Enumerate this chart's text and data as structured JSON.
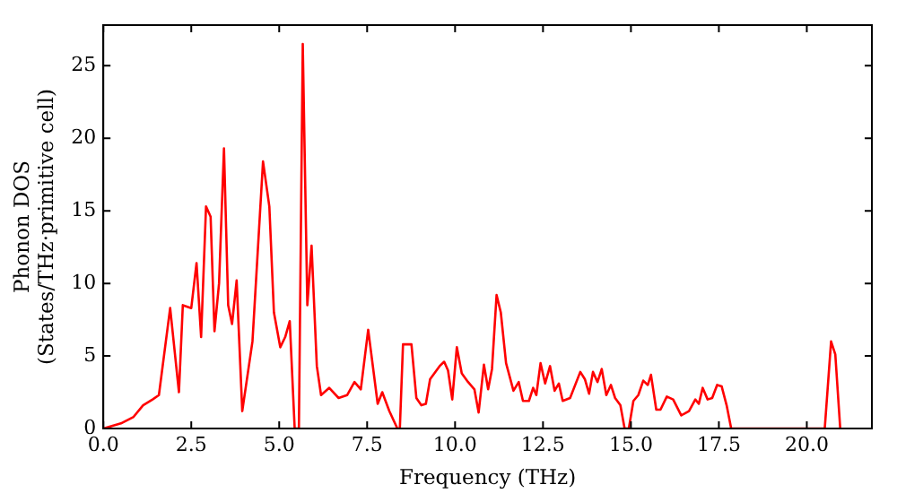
{
  "chart_data": {
    "type": "line",
    "xlabel": "Frequency (THz)",
    "ylabel": "Phonon DOS\n(States/THz·primitive cell)",
    "xlim": [
      0,
      21.85
    ],
    "ylim": [
      0,
      27.8
    ],
    "xticks": [
      {
        "value": 0,
        "label": "0.0"
      },
      {
        "value": 2.5,
        "label": "2.5"
      },
      {
        "value": 5,
        "label": "5.0"
      },
      {
        "value": 7.5,
        "label": "7.5"
      },
      {
        "value": 10,
        "label": "10.0"
      },
      {
        "value": 12.5,
        "label": "12.5"
      },
      {
        "value": 15,
        "label": "15.0"
      },
      {
        "value": 17.5,
        "label": "17.5"
      },
      {
        "value": 20,
        "label": "20.0"
      }
    ],
    "yticks": [
      0,
      5,
      10,
      15,
      20,
      25
    ],
    "grid": false,
    "legend": false,
    "marker": "none",
    "line_style": "solid",
    "series": [
      {
        "color": "#ff0000",
        "x": [
          0,
          0.5,
          0.86,
          1.13,
          1.4,
          1.58,
          1.9,
          2.15,
          2.26,
          2.5,
          2.65,
          2.78,
          2.92,
          3.05,
          3.16,
          3.29,
          3.43,
          3.55,
          3.66,
          3.79,
          3.95,
          4.24,
          4.54,
          4.72,
          4.85,
          5.03,
          5.17,
          5.3,
          5.44,
          5.56,
          5.67,
          5.8,
          5.92,
          6.07,
          6.19,
          6.42,
          6.69,
          6.93,
          7.14,
          7.32,
          7.53,
          7.8,
          7.93,
          8.13,
          8.36,
          8.43,
          8.52,
          8.76,
          8.9,
          9.04,
          9.17,
          9.29,
          9.56,
          9.69,
          9.8,
          9.92,
          10.05,
          10.19,
          10.37,
          10.55,
          10.67,
          10.82,
          10.94,
          11.05,
          11.18,
          11.3,
          11.45,
          11.66,
          11.81,
          11.93,
          12.1,
          12.22,
          12.31,
          12.43,
          12.56,
          12.7,
          12.83,
          12.95,
          13.06,
          13.27,
          13.56,
          13.69,
          13.81,
          13.92,
          14.05,
          14.17,
          14.3,
          14.43,
          14.55,
          14.7,
          14.82,
          14.94,
          15.07,
          15.21,
          15.35,
          15.48,
          15.57,
          15.72,
          15.84,
          16.02,
          16.2,
          16.43,
          16.65,
          16.83,
          16.93,
          17.04,
          17.18,
          17.31,
          17.45,
          17.58,
          17.72,
          17.85,
          20.51,
          20.69,
          20.81,
          20.95
        ],
        "values": [
          0,
          0.35,
          0.8,
          1.6,
          2.0,
          2.3,
          8.3,
          2.5,
          8.5,
          8.3,
          11.4,
          6.3,
          15.3,
          14.6,
          6.7,
          10.0,
          19.3,
          8.5,
          7.2,
          10.2,
          1.2,
          6.0,
          18.4,
          15.3,
          8.0,
          5.6,
          6.3,
          7.4,
          0,
          0,
          26.5,
          8.5,
          12.6,
          4.3,
          2.3,
          2.8,
          2.1,
          2.3,
          3.2,
          2.7,
          6.8,
          1.7,
          2.5,
          1.2,
          0,
          0,
          5.8,
          5.8,
          2.1,
          1.6,
          1.7,
          3.4,
          4.3,
          4.6,
          4.0,
          2.0,
          5.6,
          3.8,
          3.2,
          2.7,
          1.1,
          4.4,
          2.7,
          4.1,
          9.2,
          8.0,
          4.5,
          2.6,
          3.2,
          1.9,
          1.9,
          2.8,
          2.3,
          4.5,
          3.1,
          4.3,
          2.6,
          3.1,
          1.9,
          2.1,
          3.9,
          3.4,
          2.4,
          3.9,
          3.2,
          4.1,
          2.3,
          3.0,
          2.1,
          1.6,
          0,
          0,
          1.9,
          2.3,
          3.3,
          3.0,
          3.7,
          1.3,
          1.3,
          2.2,
          2.0,
          0.9,
          1.2,
          2.0,
          1.7,
          2.8,
          2.0,
          2.1,
          3.0,
          2.9,
          1.6,
          0,
          0,
          6.0,
          5.1,
          0
        ]
      }
    ]
  }
}
